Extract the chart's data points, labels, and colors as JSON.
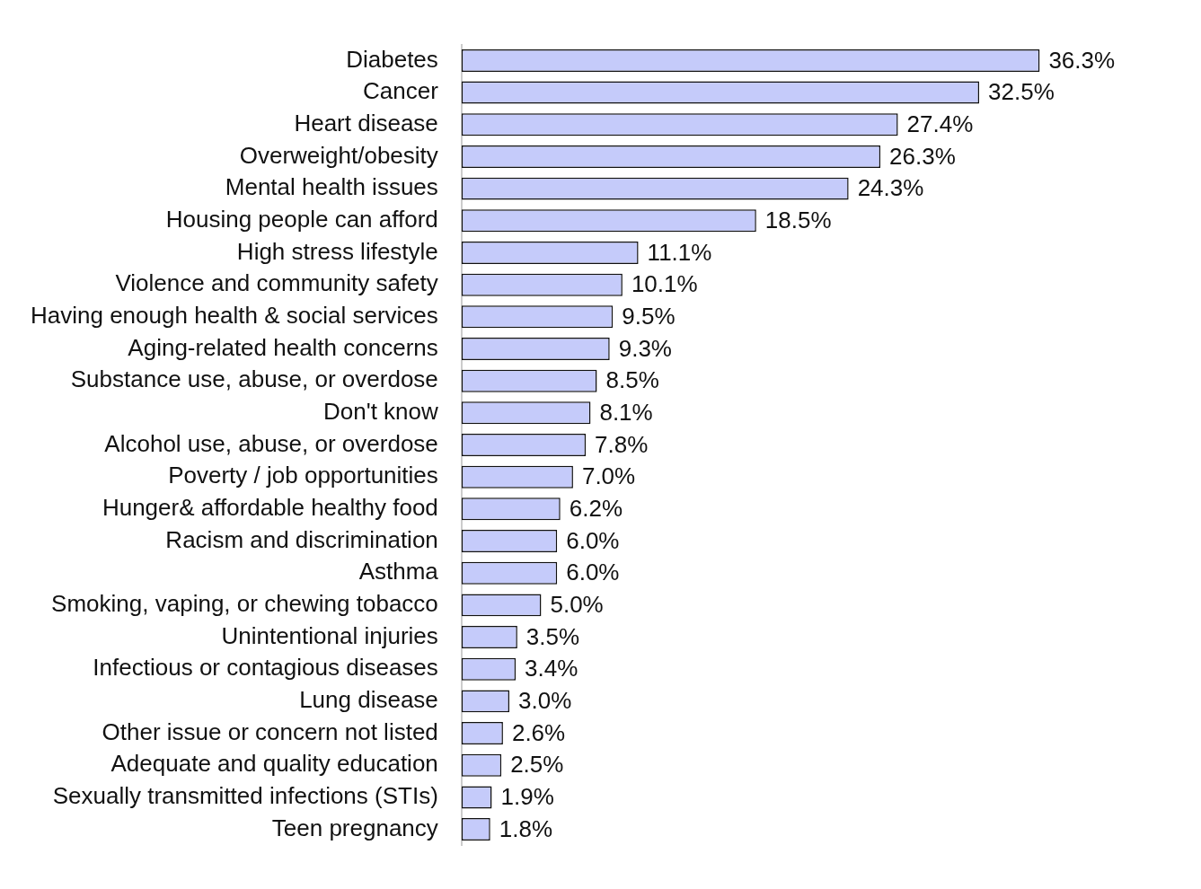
{
  "chart_data": {
    "type": "bar",
    "orientation": "horizontal",
    "tick_labels": "y",
    "grid": false,
    "legend": false,
    "categories": [
      "Diabetes",
      "Cancer",
      "Heart disease",
      "Overweight/obesity",
      "Mental health issues",
      "Housing people can afford",
      "High stress lifestyle",
      "Violence and community safety",
      "Having enough health & social services",
      "Aging-related health concerns",
      "Substance use, abuse, or overdose",
      "Don't know",
      "Alcohol use, abuse, or overdose",
      "Poverty / job opportunities",
      "Hunger& affordable healthy food",
      "Racism and discrimination",
      "Asthma",
      "Smoking, vaping, or chewing tobacco",
      "Unintentional injuries",
      "Infectious or contagious diseases",
      "Lung disease",
      "Other issue or concern not listed",
      "Adequate and quality education",
      "Sexually transmitted infections (STIs)",
      "Teen pregnancy"
    ],
    "values": [
      36.3,
      32.5,
      27.4,
      26.3,
      24.3,
      18.5,
      11.1,
      10.1,
      9.5,
      9.3,
      8.5,
      8.1,
      7.8,
      7.0,
      6.2,
      6.0,
      6.0,
      5.0,
      3.5,
      3.4,
      3.0,
      2.6,
      2.5,
      1.9,
      1.8
    ],
    "value_labels": [
      "36.3%",
      "32.5%",
      "27.4%",
      "26.3%",
      "24.3%",
      "18.5%",
      "11.1%",
      "10.1%",
      "9.5%",
      "9.3%",
      "8.5%",
      "8.1%",
      "7.8%",
      "7.0%",
      "6.2%",
      "6.0%",
      "6.0%",
      "5.0%",
      "3.5%",
      "3.4%",
      "3.0%",
      "2.6%",
      "2.5%",
      "1.9%",
      "1.8%"
    ],
    "color": "#c5cbfa"
  }
}
